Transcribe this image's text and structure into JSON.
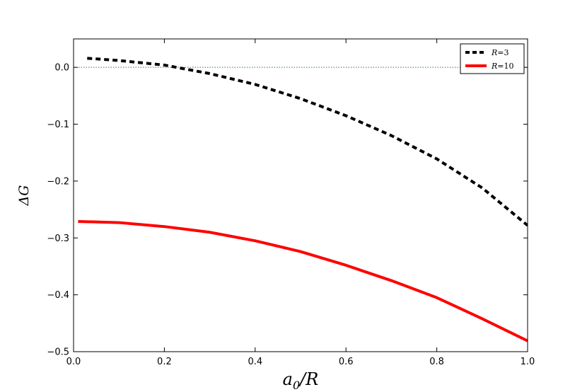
{
  "chart_data": {
    "type": "line",
    "title": "",
    "xlabel": "a_0/R",
    "ylabel": "ΔG",
    "xlim": [
      0.0,
      1.0
    ],
    "ylim": [
      -0.5,
      0.05
    ],
    "xticks": [
      0.0,
      0.2,
      0.4,
      0.6,
      0.8,
      1.0
    ],
    "xtick_labels": [
      "0.0",
      "0.2",
      "0.4",
      "0.6",
      "0.8",
      "1.0"
    ],
    "yticks": [
      0.0,
      -0.1,
      -0.2,
      -0.3,
      -0.4,
      -0.5
    ],
    "ytick_labels": [
      "0.0",
      "−0.1",
      "−0.2",
      "−0.3",
      "−0.4",
      "−0.5"
    ],
    "grid": false,
    "legend_position": "top-right",
    "reference_line": {
      "y": 0.0,
      "color": "#2e7d32",
      "style": "dotted"
    },
    "series": [
      {
        "name": "R = 3",
        "color": "#000000",
        "style": "dashed",
        "x": [
          0.03,
          0.1,
          0.2,
          0.3,
          0.4,
          0.5,
          0.6,
          0.7,
          0.8,
          0.9,
          1.0
        ],
        "y": [
          0.016,
          0.012,
          0.004,
          -0.011,
          -0.03,
          -0.055,
          -0.085,
          -0.12,
          -0.161,
          -0.212,
          -0.278
        ]
      },
      {
        "name": "R = 10",
        "color": "#ff0000",
        "style": "solid",
        "x": [
          0.01,
          0.1,
          0.2,
          0.3,
          0.4,
          0.5,
          0.6,
          0.7,
          0.8,
          0.9,
          1.0
        ],
        "y": [
          -0.271,
          -0.273,
          -0.28,
          -0.29,
          -0.305,
          -0.324,
          -0.348,
          -0.375,
          -0.405,
          -0.442,
          -0.481
        ]
      }
    ],
    "legend": [
      {
        "symbol": "R",
        "value": "3"
      },
      {
        "symbol": "R",
        "value": "10"
      }
    ]
  }
}
